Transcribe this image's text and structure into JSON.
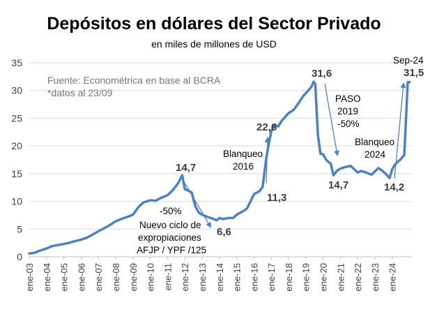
{
  "chart_data": {
    "type": "line",
    "title": "Depósitos en dólares del Sector Privado",
    "subtitle": "en miles de millones de USD",
    "source_note": "Fuente: Econométrica en base al BCRA",
    "data_note": "*datos al 23/09",
    "ylim": [
      0,
      35
    ],
    "yticks": [
      "0",
      "5",
      "10",
      "15",
      "20",
      "25",
      "30",
      "35"
    ],
    "xlim": [
      2003.0,
      2025.1
    ],
    "xticks": [
      "ene-03",
      "ene-04",
      "ene-05",
      "ene-06",
      "ene-07",
      "ene-08",
      "ene-09",
      "ene-10",
      "ene-11",
      "ene-12",
      "ene-13",
      "ene-14",
      "ene-15",
      "ene-16",
      "ene-17",
      "ene-18",
      "ene-19",
      "ene-20",
      "ene-21",
      "ene-22",
      "ene-23",
      "ene-24"
    ],
    "grid": true,
    "line_color": "#4e81bd",
    "series": [
      {
        "x": [
          2003.0,
          2003.3,
          2003.6,
          2004.0,
          2004.3,
          2004.6,
          2005.0,
          2005.3,
          2005.6,
          2006.0,
          2006.3,
          2006.6,
          2007.0,
          2007.3,
          2007.6,
          2008.0,
          2008.3,
          2008.6,
          2009.0,
          2009.3,
          2009.6,
          2010.0,
          2010.3,
          2010.6,
          2011.0,
          2011.3,
          2011.6,
          2011.85,
          2012.0,
          2012.15,
          2012.4,
          2012.6,
          2012.8,
          2013.0,
          2013.3,
          2013.6,
          2013.85,
          2014.0,
          2014.2,
          2014.5,
          2014.8,
          2015.0,
          2015.3,
          2015.6,
          2016.0,
          2016.3,
          2016.5,
          2016.7,
          2016.85,
          2017.0,
          2017.2,
          2017.4,
          2017.6,
          2017.8,
          2018.0,
          2018.3,
          2018.6,
          2018.85,
          2019.0,
          2019.2,
          2019.35,
          2019.45,
          2019.55,
          2019.7,
          2019.85,
          2020.0,
          2020.2,
          2020.45,
          2020.6,
          2020.8,
          2021.0,
          2021.3,
          2021.6,
          2022.0,
          2022.2,
          2022.5,
          2022.8,
          2023.0,
          2023.2,
          2023.4,
          2023.65,
          2023.85,
          2024.0,
          2024.15,
          2024.3,
          2024.5,
          2024.7,
          2024.9,
          2025.0
        ],
        "y": [
          0.6,
          0.7,
          1.1,
          1.5,
          1.9,
          2.1,
          2.3,
          2.5,
          2.8,
          3.1,
          3.4,
          3.9,
          4.6,
          5.1,
          5.6,
          6.4,
          6.8,
          7.1,
          7.6,
          8.9,
          9.8,
          10.2,
          10.1,
          10.6,
          11.1,
          12.0,
          13.2,
          14.7,
          12.2,
          12.0,
          11.6,
          9.2,
          8.0,
          7.6,
          7.2,
          6.9,
          6.6,
          7.0,
          6.8,
          7.0,
          7.0,
          7.6,
          8.1,
          8.7,
          11.3,
          11.8,
          12.6,
          17.5,
          20.2,
          22.6,
          23.8,
          23.5,
          24.5,
          25.2,
          25.9,
          26.5,
          27.8,
          29.0,
          29.5,
          30.2,
          30.8,
          31.6,
          31.2,
          22.0,
          18.6,
          18.5,
          17.4,
          16.8,
          14.7,
          15.5,
          15.9,
          16.2,
          16.4,
          15.2,
          15.5,
          15.2,
          14.8,
          15.4,
          16.0,
          15.6,
          14.9,
          14.2,
          15.8,
          16.6,
          17.1,
          17.6,
          18.4,
          31.5,
          31.5
        ]
      }
    ],
    "annotations": {
      "peak_2011": "14,7",
      "drop_1_pct": "-50%",
      "drop_1_text_1": "Nuevo ciclo de",
      "drop_1_text_2": "expropiaciones",
      "drop_1_text_3": "AFJP / YPF /125",
      "low_2013": "6,6",
      "blanqueo_2016_1": "Blanqueo",
      "blanqueo_2016_2": "2016",
      "low_2016": "11,3",
      "peak_2016": "22,6",
      "peak_2019": "31,6",
      "paso_1": "PASO",
      "paso_2": "2019",
      "paso_3": "-50%",
      "low_2020": "14,7",
      "blanqueo_2024_1": "Blanqueo",
      "blanqueo_2024_2": "2024",
      "low_2023": "14,2",
      "sep24_label": "Sep-24",
      "last_value": "31,5"
    }
  }
}
